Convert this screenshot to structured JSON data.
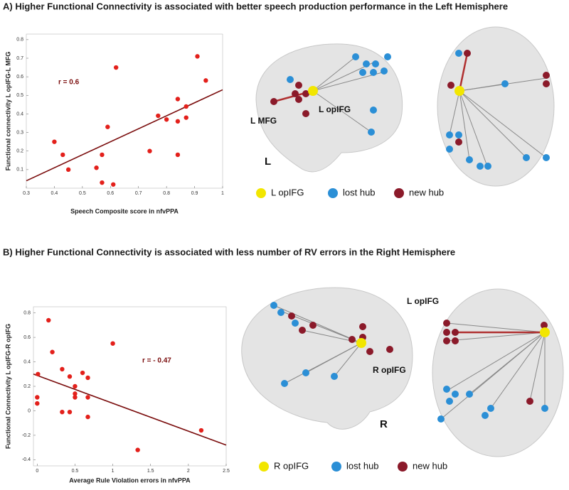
{
  "chart_data": [
    {
      "type": "scatter",
      "title": "A) Higher Functional Connectivity is associated with better speech production performance in the Left Hemisphere",
      "x_label": "Speech Composite score in nfvPPA",
      "y_label": "Functional connectivity L opIFG-L MFG",
      "annotation": "r = 0.6",
      "color": "#e3201b",
      "x": [
        0.4,
        0.43,
        0.45,
        0.55,
        0.57,
        0.57,
        0.59,
        0.61,
        0.62,
        0.74,
        0.77,
        0.8,
        0.84,
        0.84,
        0.84,
        0.87,
        0.87,
        0.91,
        0.94
      ],
      "y": [
        0.25,
        0.18,
        0.1,
        0.11,
        0.18,
        0.03,
        0.33,
        0.02,
        0.65,
        0.2,
        0.39,
        0.37,
        0.48,
        0.36,
        0.18,
        0.44,
        0.38,
        0.71,
        0.58
      ],
      "trend": {
        "color": "#7a0c0c",
        "x": [
          0.3,
          1
        ],
        "y": [
          0.04,
          0.53
        ]
      },
      "xlim": [
        0.3,
        1
      ],
      "ylim": [
        0,
        0.83
      ],
      "xticks": [
        0.3,
        0.4,
        0.5,
        0.6,
        0.7,
        0.8,
        0.9,
        1
      ],
      "yticks": [
        0.1,
        0.2,
        0.3,
        0.4,
        0.5,
        0.6,
        0.7,
        0.8
      ]
    },
    {
      "type": "scatter",
      "title": "B) Higher Functional Connectivity is associated with  less  number of RV errors in the Right Hemisphere",
      "x_label": "Average Rule Violation errors in nfvPPA",
      "y_label": "Functional Connectivity L opIFG-R opIFG",
      "annotation": "r = - 0.47",
      "color": "#e3201b",
      "x": [
        0.15,
        0.2,
        0.01,
        0.0,
        0.0,
        0.33,
        0.43,
        0.33,
        0.43,
        0.5,
        0.5,
        0.5,
        0.6,
        0.67,
        0.67,
        0.67,
        1.0,
        1.33,
        2.17
      ],
      "y": [
        0.74,
        0.48,
        0.3,
        0.11,
        0.06,
        0.34,
        0.28,
        -0.01,
        -0.01,
        0.2,
        0.14,
        0.11,
        0.31,
        0.27,
        0.11,
        -0.05,
        0.55,
        -0.32,
        -0.16
      ],
      "trend": {
        "color": "#7a0c0c",
        "x": [
          -0.05,
          2.5
        ],
        "y": [
          0.3,
          -0.28
        ]
      },
      "xlim": [
        -0.05,
        2.5
      ],
      "ylim": [
        -0.45,
        0.85
      ],
      "xticks": [
        0,
        0.5,
        1,
        1.5,
        2,
        2.5
      ],
      "yticks": [
        -0.4,
        -0.2,
        0,
        0.2,
        0.4,
        0.6,
        0.8
      ]
    }
  ],
  "brains": [
    {
      "labels": [
        "L MFG",
        "L opIFG"
      ],
      "side": "L",
      "legend": [
        "L opIFG",
        "lost hub",
        "new hub"
      ]
    },
    {
      "labels": [
        "R opIFG",
        "L opIFG"
      ],
      "side": "R",
      "legend": [
        "R opIFG",
        "lost hub",
        "new hub"
      ]
    }
  ]
}
